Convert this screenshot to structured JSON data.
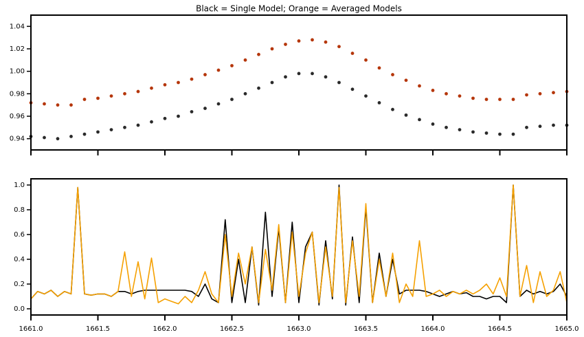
{
  "chart_data": [
    {
      "type": "scatter",
      "title": "Black = Single Model; Orange = Averaged Models",
      "x": [
        1661.0,
        1661.1,
        1661.2,
        1661.3,
        1661.4,
        1661.5,
        1661.6,
        1661.7,
        1661.8,
        1661.9,
        1662.0,
        1662.1,
        1662.2,
        1662.3,
        1662.4,
        1662.5,
        1662.6,
        1662.7,
        1662.8,
        1662.9,
        1663.0,
        1663.1,
        1663.2,
        1663.3,
        1663.4,
        1663.5,
        1663.6,
        1663.7,
        1663.8,
        1663.9,
        1664.0,
        1664.1,
        1664.2,
        1664.3,
        1664.4,
        1664.5,
        1664.6,
        1664.7,
        1664.8,
        1664.9,
        1665.0
      ],
      "series": [
        {
          "name": "Single Model",
          "color": "#2a2a2a",
          "values": [
            0.942,
            0.941,
            0.94,
            0.942,
            0.944,
            0.946,
            0.948,
            0.95,
            0.952,
            0.955,
            0.958,
            0.96,
            0.964,
            0.967,
            0.971,
            0.975,
            0.98,
            0.985,
            0.99,
            0.995,
            0.998,
            0.998,
            0.995,
            0.99,
            0.984,
            0.978,
            0.972,
            0.966,
            0.961,
            0.957,
            0.953,
            0.95,
            0.948,
            0.946,
            0.945,
            0.944,
            0.944,
            0.95,
            0.951,
            0.952,
            0.952
          ]
        },
        {
          "name": "Averaged Models",
          "color": "#b5360a",
          "values": [
            0.972,
            0.971,
            0.97,
            0.97,
            0.975,
            0.976,
            0.978,
            0.98,
            0.982,
            0.985,
            0.988,
            0.99,
            0.993,
            0.997,
            1.001,
            1.005,
            1.01,
            1.015,
            1.02,
            1.024,
            1.027,
            1.028,
            1.026,
            1.022,
            1.016,
            1.01,
            1.003,
            0.997,
            0.992,
            0.987,
            0.983,
            0.98,
            0.978,
            0.976,
            0.975,
            0.975,
            0.975,
            0.979,
            0.98,
            0.981,
            0.982
          ]
        }
      ],
      "xlim": [
        1661,
        1665
      ],
      "ylim": [
        0.93,
        1.05
      ],
      "yticks": [
        0.94,
        0.96,
        0.98,
        {
          "value": 1,
          "label": "1.00"
        },
        1.02,
        1.04
      ]
    },
    {
      "type": "line",
      "x": [
        1661.0,
        1661.05,
        1661.1,
        1661.15,
        1661.2,
        1661.25,
        1661.3,
        1661.35,
        1661.4,
        1661.45,
        1661.5,
        1661.55,
        1661.6,
        1661.65,
        1661.7,
        1661.75,
        1661.8,
        1661.85,
        1661.9,
        1661.95,
        1662.0,
        1662.05,
        1662.1,
        1662.15,
        1662.2,
        1662.25,
        1662.3,
        1662.35,
        1662.4,
        1662.45,
        1662.5,
        1662.55,
        1662.6,
        1662.65,
        1662.7,
        1662.75,
        1662.8,
        1662.85,
        1662.9,
        1662.95,
        1663.0,
        1663.05,
        1663.1,
        1663.15,
        1663.2,
        1663.25,
        1663.3,
        1663.35,
        1663.4,
        1663.45,
        1663.5,
        1663.55,
        1663.6,
        1663.65,
        1663.7,
        1663.75,
        1663.8,
        1663.85,
        1663.9,
        1663.95,
        1664.0,
        1664.05,
        1664.1,
        1664.15,
        1664.2,
        1664.25,
        1664.3,
        1664.35,
        1664.4,
        1664.45,
        1664.5,
        1664.55,
        1664.6,
        1664.65,
        1664.7,
        1664.75,
        1664.8,
        1664.85,
        1664.9,
        1664.95,
        1665.0
      ],
      "series": [
        {
          "name": "Single Model",
          "color": "#000000",
          "values": [
            0.08,
            0.14,
            0.12,
            0.15,
            0.1,
            0.14,
            0.12,
            0.98,
            0.12,
            0.11,
            0.12,
            0.12,
            0.1,
            0.14,
            0.14,
            0.12,
            0.14,
            0.15,
            0.15,
            0.15,
            0.15,
            0.15,
            0.15,
            0.15,
            0.14,
            0.1,
            0.2,
            0.08,
            0.05,
            0.72,
            0.05,
            0.4,
            0.05,
            0.5,
            0.03,
            0.78,
            0.1,
            0.65,
            0.05,
            0.7,
            0.05,
            0.5,
            0.62,
            0.03,
            0.55,
            0.08,
            1.0,
            0.03,
            0.58,
            0.05,
            0.82,
            0.05,
            0.45,
            0.1,
            0.4,
            0.12,
            0.15,
            0.15,
            0.15,
            0.14,
            0.12,
            0.1,
            0.12,
            0.14,
            0.12,
            0.13,
            0.1,
            0.1,
            0.08,
            0.1,
            0.1,
            0.05,
            1.0,
            0.1,
            0.15,
            0.12,
            0.14,
            0.12,
            0.14,
            0.2,
            0.1
          ]
        },
        {
          "name": "Averaged Models",
          "color": "#f5a000",
          "values": [
            0.08,
            0.14,
            0.12,
            0.15,
            0.1,
            0.14,
            0.12,
            0.98,
            0.12,
            0.11,
            0.12,
            0.12,
            0.1,
            0.14,
            0.46,
            0.1,
            0.38,
            0.08,
            0.41,
            0.05,
            0.08,
            0.06,
            0.04,
            0.1,
            0.05,
            0.15,
            0.3,
            0.12,
            0.05,
            0.6,
            0.1,
            0.45,
            0.2,
            0.5,
            0.05,
            0.48,
            0.15,
            0.68,
            0.05,
            0.62,
            0.1,
            0.45,
            0.62,
            0.05,
            0.5,
            0.1,
            0.98,
            0.05,
            0.55,
            0.1,
            0.85,
            0.05,
            0.4,
            0.1,
            0.45,
            0.05,
            0.2,
            0.1,
            0.55,
            0.1,
            0.12,
            0.15,
            0.1,
            0.14,
            0.12,
            0.15,
            0.12,
            0.15,
            0.2,
            0.12,
            0.25,
            0.1,
            1.0,
            0.1,
            0.35,
            0.05,
            0.3,
            0.1,
            0.15,
            0.3,
            0.05
          ]
        }
      ],
      "xlim": [
        1661,
        1665
      ],
      "ylim": [
        -0.05,
        1.05
      ],
      "xticks": [
        {
          "value": 1661,
          "label": "1661.0"
        },
        1661.5,
        {
          "value": 1662,
          "label": "1662.0"
        },
        1662.5,
        {
          "value": 1663,
          "label": "1663.0"
        },
        1663.5,
        {
          "value": 1664,
          "label": "1664.0"
        },
        1664.5,
        {
          "value": 1665,
          "label": "1665.0"
        }
      ],
      "yticks": [
        {
          "value": 0,
          "label": "0.0"
        },
        0.2,
        0.4,
        0.6,
        0.8,
        {
          "value": 1,
          "label": "1.0"
        }
      ]
    }
  ]
}
